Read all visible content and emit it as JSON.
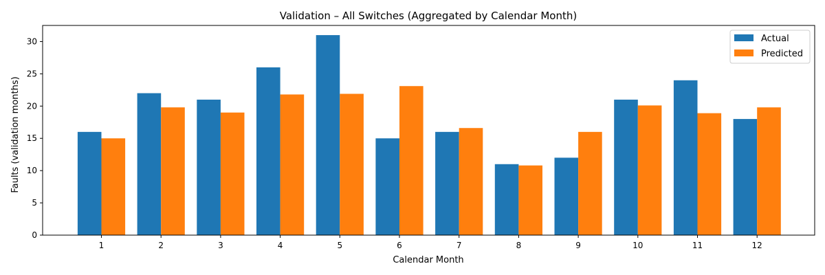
{
  "colors": {
    "actual": "#1f77b4",
    "predicted": "#ff7f0e"
  },
  "chart_data": {
    "type": "bar",
    "title": "Validation – All Switches (Aggregated by Calendar Month)",
    "xlabel": "Calendar Month",
    "ylabel": "Faults (validation months)",
    "categories": [
      "1",
      "2",
      "3",
      "4",
      "5",
      "6",
      "7",
      "8",
      "9",
      "10",
      "11",
      "12"
    ],
    "series": [
      {
        "name": "Actual",
        "values": [
          16,
          22,
          21,
          26,
          31,
          15,
          16,
          11,
          12,
          21,
          24,
          18
        ]
      },
      {
        "name": "Predicted",
        "values": [
          15.0,
          19.8,
          19.0,
          21.8,
          21.9,
          23.1,
          16.6,
          10.8,
          16.0,
          20.1,
          18.9,
          19.8
        ]
      }
    ],
    "ylim": [
      0,
      32.5
    ],
    "yticks": [
      0,
      5,
      10,
      15,
      20,
      25,
      30
    ],
    "grid": false,
    "legend": "top-right"
  }
}
